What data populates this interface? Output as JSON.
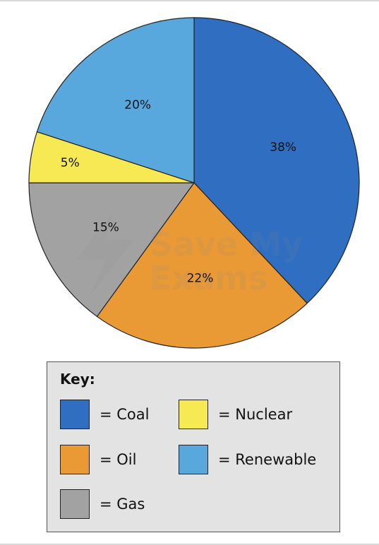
{
  "chart_data": {
    "type": "pie",
    "start_angle_deg": 90,
    "direction": "clockwise",
    "slices": [
      {
        "key": "coal",
        "label": "Coal",
        "value": 38,
        "value_label": "38%",
        "color": "#2F6EC1"
      },
      {
        "key": "oil",
        "label": "Oil",
        "value": 22,
        "value_label": "22%",
        "color": "#E99A35"
      },
      {
        "key": "gas",
        "label": "Gas",
        "value": 15,
        "value_label": "15%",
        "color": "#A2A2A2"
      },
      {
        "key": "nuclear",
        "label": "Nuclear",
        "value": 5,
        "value_label": "5%",
        "color": "#F7E954"
      },
      {
        "key": "renewable",
        "label": "Renewable",
        "value": 20,
        "value_label": "20%",
        "color": "#58A8DE"
      }
    ]
  },
  "key": {
    "title": "Key:",
    "entries": [
      {
        "text": "= Coal",
        "color": "#2F6EC1"
      },
      {
        "text": "= Nuclear",
        "color": "#F7E954"
      },
      {
        "text": "= Oil",
        "color": "#E99A35"
      },
      {
        "text": "= Renewable",
        "color": "#58A8DE"
      },
      {
        "text": "= Gas",
        "color": "#A2A2A2"
      }
    ]
  },
  "watermark": {
    "line1": "Save My",
    "line2": "Exams"
  }
}
